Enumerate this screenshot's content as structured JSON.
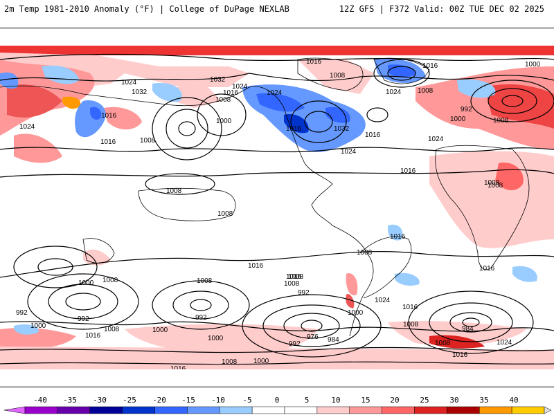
{
  "header": {
    "left_title": "2m Temp 1981-2010 Anomaly (°F) | College of DuPage NEXLAB",
    "right_title": "12Z GFS | F372 Valid: 00Z TUE DEC 02 2025"
  },
  "colorbar": {
    "labels": [
      "-40",
      "-35",
      "-30",
      "-25",
      "-20",
      "-15",
      "-10",
      "-5",
      "0",
      "5",
      "10",
      "15",
      "20",
      "25",
      "30",
      "35",
      "40"
    ],
    "colors": [
      "#e066ff",
      "#9900cc",
      "#6600aa",
      "#000099",
      "#0033cc",
      "#3366ff",
      "#6699ff",
      "#99ccff",
      "#ffffff",
      "#ffffff",
      "#ffcccc",
      "#ff9999",
      "#ff6666",
      "#dd2222",
      "#aa0000",
      "#ff9900",
      "#ffcc00",
      "#dddddd"
    ]
  },
  "pressure_labels": [
    "1016",
    "1008",
    "1032",
    "1024",
    "1024",
    "1016",
    "1008",
    "1000",
    "1032",
    "1024",
    "1016",
    "1032",
    "1024",
    "1008",
    "1016",
    "1000",
    "1024",
    "1008",
    "1016",
    "1024",
    "1016",
    "1008",
    "992",
    "1000",
    "1016",
    "1024",
    "1016",
    "1008",
    "1008",
    "1008",
    "1016",
    "1008",
    "1016",
    "1000",
    "1008",
    "1008",
    "992",
    "992",
    "1000",
    "1016",
    "1008",
    "1008",
    "992",
    "1000",
    "1008",
    "992",
    "1000",
    "1008",
    "1016",
    "1016",
    "992",
    "976",
    "984",
    "1000",
    "1024",
    "1016",
    "1008",
    "984",
    "1008",
    "1024",
    "1016",
    "1016",
    "1008",
    "1000"
  ]
}
